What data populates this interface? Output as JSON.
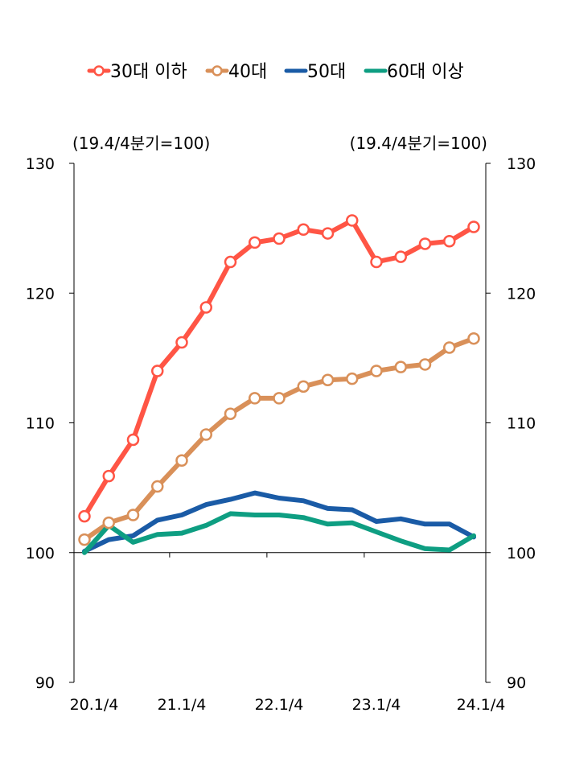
{
  "chart_data": {
    "type": "line",
    "title": "",
    "xlabel": "",
    "ylabel": "",
    "unit_label_left": "(19.4/4분기=100)",
    "unit_label_right": "(19.4/4분기=100)",
    "ylim": [
      90,
      130
    ],
    "yticks": [
      "90",
      "100",
      "110",
      "120",
      "130"
    ],
    "xtick_labels": [
      "20.1/4",
      "21.1/4",
      "22.1/4",
      "23.1/4",
      "24.1/4"
    ],
    "x": [
      "20.1/4",
      "20.2/4",
      "20.3/4",
      "20.4/4",
      "21.1/4",
      "21.2/4",
      "21.3/4",
      "21.4/4",
      "22.1/4",
      "22.2/4",
      "22.3/4",
      "22.4/4",
      "23.1/4",
      "23.2/4",
      "23.3/4",
      "23.4/4",
      "24.1/4"
    ],
    "legend_position": "top",
    "grid": false,
    "reference_line": 100,
    "series": [
      {
        "name": "30대 이하",
        "color": "#ff5545",
        "marker": "circle",
        "values": [
          102.8,
          105.9,
          108.7,
          114.0,
          116.2,
          118.9,
          122.4,
          123.9,
          124.2,
          124.9,
          124.6,
          125.6,
          122.4,
          122.8,
          123.8,
          124.0,
          125.1
        ]
      },
      {
        "name": "40대",
        "color": "#d99059",
        "marker": "circle",
        "values": [
          101.0,
          102.3,
          102.9,
          105.1,
          107.1,
          109.1,
          110.7,
          111.9,
          111.9,
          112.8,
          113.3,
          113.4,
          114.0,
          114.3,
          114.5,
          115.8,
          116.5
        ]
      },
      {
        "name": "50대",
        "color": "#1a5ba6",
        "marker": "none",
        "values": [
          100.1,
          101.0,
          101.3,
          102.5,
          102.9,
          103.7,
          104.1,
          104.6,
          104.2,
          104.0,
          103.4,
          103.3,
          102.4,
          102.6,
          102.2,
          102.2,
          101.2
        ]
      },
      {
        "name": "60대 이상",
        "color": "#0e9e82",
        "marker": "none",
        "values": [
          100.0,
          102.1,
          100.8,
          101.4,
          101.5,
          102.1,
          103.0,
          102.9,
          102.9,
          102.7,
          102.2,
          102.3,
          101.6,
          100.9,
          100.3,
          100.2,
          101.3
        ]
      }
    ]
  }
}
